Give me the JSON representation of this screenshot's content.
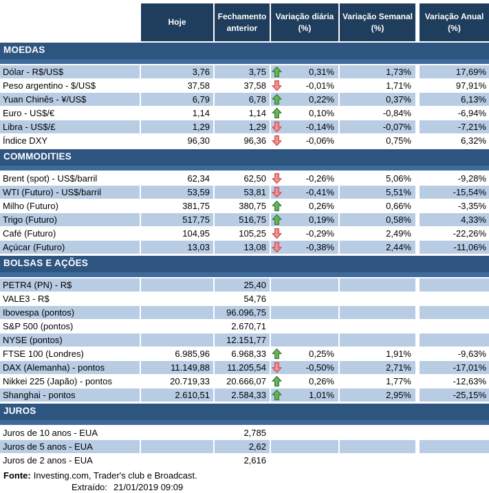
{
  "header": {
    "columns": [
      "Hoje",
      "Fechamento anterior",
      "Variação diária (%)",
      "Variação Semanal (%)",
      "Variação Anual (%)"
    ]
  },
  "sections": [
    {
      "title": "MOEDAS",
      "rows": [
        {
          "label": "Dólar - R$/US$",
          "hoje": "3,76",
          "fechamento": "3,75",
          "arrow": "up",
          "var_diaria": "0,31%",
          "var_semanal": "1,73%",
          "var_anual": "17,69%",
          "shaded": true
        },
        {
          "label": "Peso argentino - $/US$",
          "hoje": "37,58",
          "fechamento": "37,58",
          "arrow": "down",
          "var_diaria": "-0,01%",
          "var_semanal": "1,71%",
          "var_anual": "97,91%",
          "shaded": false
        },
        {
          "label": "Yuan Chinês - ¥/US$",
          "hoje": "6,79",
          "fechamento": "6,78",
          "arrow": "up",
          "var_diaria": "0,22%",
          "var_semanal": "0,37%",
          "var_anual": "6,13%",
          "shaded": true
        },
        {
          "label": "Euro - US$/€",
          "hoje": "1,14",
          "fechamento": "1,14",
          "arrow": "up",
          "var_diaria": "0,10%",
          "var_semanal": "-0,84%",
          "var_anual": "-6,94%",
          "shaded": false
        },
        {
          "label": "Libra - US$/£",
          "hoje": "1,29",
          "fechamento": "1,29",
          "arrow": "down",
          "var_diaria": "-0,14%",
          "var_semanal": "-0,07%",
          "var_anual": "-7,21%",
          "shaded": true
        },
        {
          "label": "Índice DXY",
          "hoje": "96,30",
          "fechamento": "96,36",
          "arrow": "down",
          "var_diaria": "-0,06%",
          "var_semanal": "0,75%",
          "var_anual": "6,32%",
          "shaded": false
        }
      ]
    },
    {
      "title": "COMMODITIES",
      "rows": [
        {
          "label": "Brent (spot) - US$/barril",
          "hoje": "62,34",
          "fechamento": "62,50",
          "arrow": "down",
          "var_diaria": "-0,26%",
          "var_semanal": "5,06%",
          "var_anual": "-9,28%",
          "shaded": false
        },
        {
          "label": "WTI (Futuro) - US$/barril",
          "hoje": "53,59",
          "fechamento": "53,81",
          "arrow": "down",
          "var_diaria": "-0,41%",
          "var_semanal": "5,51%",
          "var_anual": "-15,54%",
          "shaded": true
        },
        {
          "label": "Milho (Futuro)",
          "hoje": "381,75",
          "fechamento": "380,75",
          "arrow": "up",
          "var_diaria": "0,26%",
          "var_semanal": "0,66%",
          "var_anual": "-3,35%",
          "shaded": false
        },
        {
          "label": "Trigo (Futuro)",
          "hoje": "517,75",
          "fechamento": "516,75",
          "arrow": "up",
          "var_diaria": "0,19%",
          "var_semanal": "0,58%",
          "var_anual": "4,33%",
          "shaded": true
        },
        {
          "label": "Café (Futuro)",
          "hoje": "104,95",
          "fechamento": "105,25",
          "arrow": "down",
          "var_diaria": "-0,29%",
          "var_semanal": "2,49%",
          "var_anual": "-22,26%",
          "shaded": false
        },
        {
          "label": "Açúcar (Futuro)",
          "hoje": "13,03",
          "fechamento": "13,08",
          "arrow": "down",
          "var_diaria": "-0,38%",
          "var_semanal": "2,44%",
          "var_anual": "-11,06%",
          "shaded": true
        }
      ]
    },
    {
      "title": "BOLSAS E AÇÕES",
      "rows": [
        {
          "label": "PETR4 (PN) - R$",
          "fechamento": "25,40",
          "shaded": true
        },
        {
          "label": "VALE3 - R$",
          "fechamento": "54,76",
          "shaded": false
        },
        {
          "label": "Ibovespa (pontos)",
          "fechamento": "96.096,75",
          "shaded": true
        },
        {
          "label": "S&P 500 (pontos)",
          "fechamento": "2.670,71",
          "shaded": false
        },
        {
          "label": "NYSE (pontos)",
          "fechamento": "12.151,77",
          "shaded": true
        },
        {
          "label": "FTSE 100 (Londres)",
          "hoje": "6.985,96",
          "fechamento": "6.968,33",
          "arrow": "up",
          "var_diaria": "0,25%",
          "var_semanal": "1,91%",
          "var_anual": "-9,63%",
          "shaded": false
        },
        {
          "label": "DAX (Alemanha) - pontos",
          "hoje": "11.149,88",
          "fechamento": "11.205,54",
          "arrow": "down",
          "var_diaria": "-0,50%",
          "var_semanal": "2,71%",
          "var_anual": "-17,01%",
          "shaded": true
        },
        {
          "label": "Nikkei 225 (Japão) - pontos",
          "hoje": "20.719,33",
          "fechamento": "20.666,07",
          "arrow": "up",
          "var_diaria": "0,26%",
          "var_semanal": "1,77%",
          "var_anual": "-12,63%",
          "shaded": false
        },
        {
          "label": "Shanghai - pontos",
          "hoje": "2.610,51",
          "fechamento": "2.584,33",
          "arrow": "up",
          "var_diaria": "1,01%",
          "var_semanal": "2,95%",
          "var_anual": "-25,15%",
          "shaded": true
        }
      ]
    },
    {
      "title": "JUROS",
      "rows": [
        {
          "label": "Juros de 10 anos - EUA",
          "fechamento": "2,785",
          "shaded": false
        },
        {
          "label": "Juros de 5 anos - EUA",
          "fechamento": "2,62",
          "shaded": true
        },
        {
          "label": "Juros de 2 anos - EUA",
          "fechamento": "2,616",
          "shaded": false
        }
      ]
    }
  ],
  "footer": {
    "fonte_label": "Fonte:",
    "fonte_text": "Investing.com, Trader's club e Broadcast.",
    "extraido_label": "Extraído:",
    "extraido_value": "21/01/2019 09:09"
  },
  "colors": {
    "header_bg": "#1F3D5C",
    "section_bar_bg": "#366092",
    "row_shaded_bg": "#B8CCE4",
    "row_plain_bg": "#FFFFFF",
    "up_arrow_fill": "#67B554",
    "up_arrow_border": "#2F7A35",
    "down_arrow_fill": "#ED9390",
    "down_arrow_border": "#CF4747"
  }
}
